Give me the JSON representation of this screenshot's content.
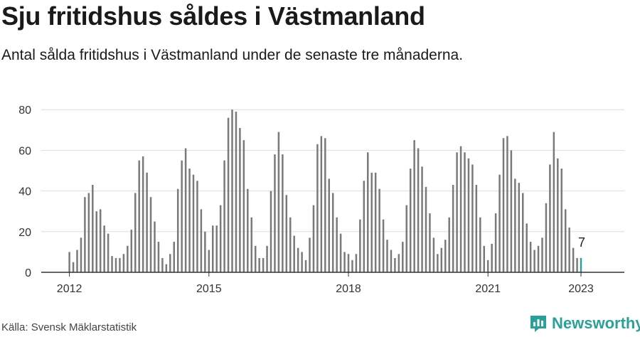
{
  "header": {
    "title": "Sju fritidshus såldes i Västmanland",
    "subtitle": "Antal sålda fritidshus i Västmanland under de senaste tre månaderna."
  },
  "footer": {
    "source": "Källa: Svensk Mäklarstatistik",
    "brand": "Newsworthy"
  },
  "colors": {
    "bar": "#7a7a7a",
    "highlight": "#2aa198",
    "grid": "#dddddd",
    "axis": "#333333"
  },
  "chart_data": {
    "type": "bar",
    "x_start": "2012-01",
    "x_end": "2023-01",
    "x_tick_labels": [
      "2012",
      "2015",
      "2018",
      "2021",
      "2023"
    ],
    "y_ticks": [
      0,
      20,
      40,
      60,
      80
    ],
    "ylim": [
      0,
      85
    ],
    "grid": true,
    "highlight_last": true,
    "last_value_label": "7",
    "values": [
      10,
      5,
      11,
      17,
      37,
      39,
      43,
      30,
      31,
      23,
      19,
      8,
      7,
      7,
      9,
      13,
      21,
      39,
      55,
      57,
      49,
      37,
      25,
      15,
      7,
      4,
      9,
      15,
      41,
      55,
      61,
      51,
      48,
      45,
      31,
      20,
      11,
      23,
      23,
      33,
      55,
      76,
      80,
      79,
      71,
      65,
      41,
      27,
      13,
      7,
      7,
      13,
      40,
      58,
      69,
      58,
      38,
      27,
      18,
      12,
      10,
      6,
      17,
      33,
      63,
      67,
      66,
      46,
      39,
      27,
      19,
      10,
      9,
      6,
      9,
      26,
      45,
      59,
      49,
      49,
      41,
      26,
      16,
      11,
      7,
      9,
      15,
      33,
      51,
      65,
      61,
      52,
      42,
      29,
      17,
      9,
      12,
      16,
      27,
      43,
      59,
      62,
      59,
      56,
      53,
      43,
      27,
      13,
      6,
      14,
      29,
      48,
      66,
      67,
      60,
      46,
      44,
      39,
      24,
      15,
      11,
      13,
      17,
      34,
      53,
      69,
      56,
      51,
      31,
      22,
      12,
      7
    ]
  }
}
